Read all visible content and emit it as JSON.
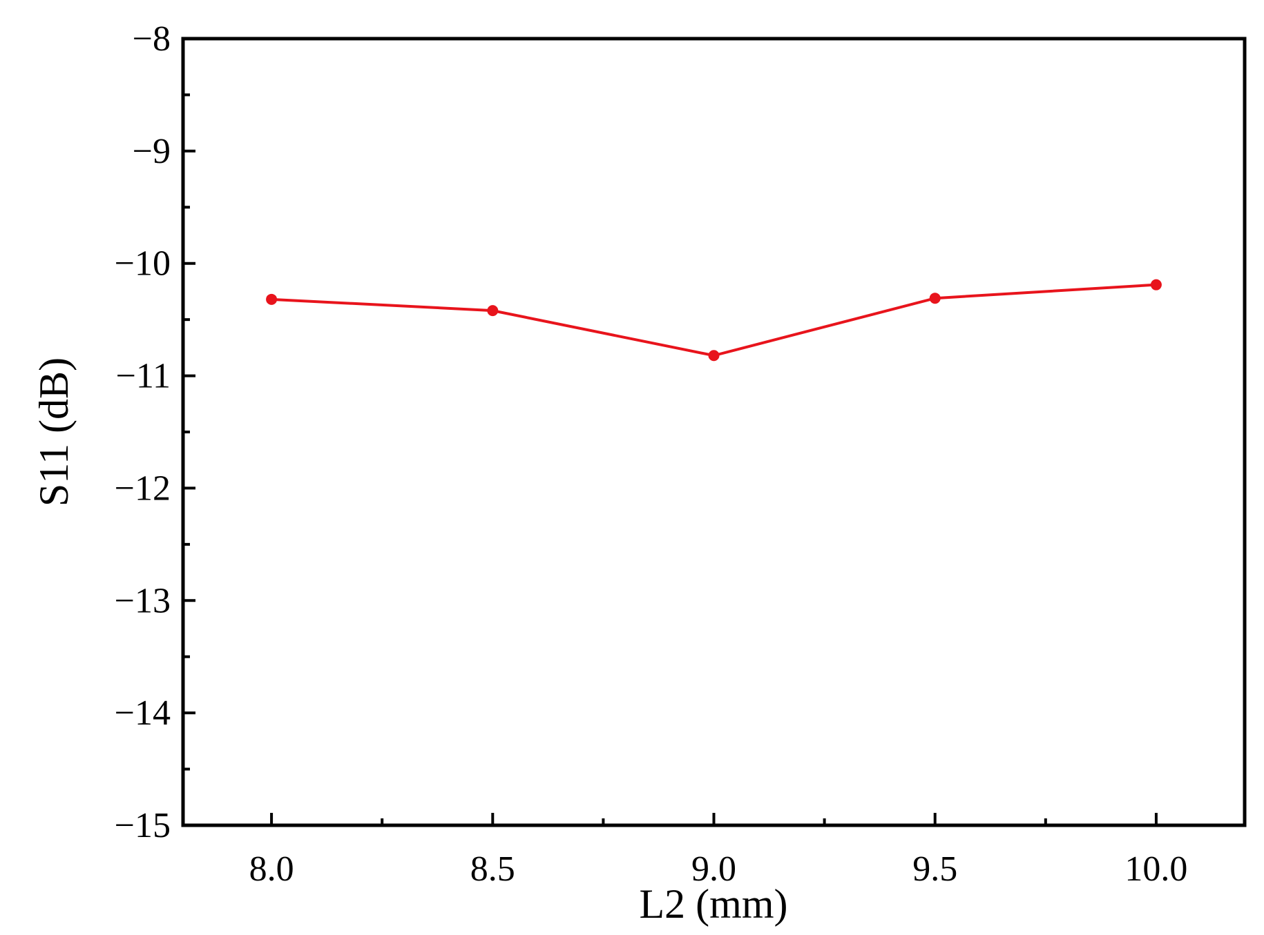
{
  "chart_data": {
    "type": "line",
    "title": "",
    "xlabel": "L2 (mm)",
    "ylabel": "S11 (dB)",
    "xlim": [
      7.8,
      10.2
    ],
    "ylim": [
      -15,
      -8
    ],
    "x_ticks": [
      8.0,
      8.5,
      9.0,
      9.5,
      10.0
    ],
    "x_tick_labels": [
      "8.0",
      "8.5",
      "9.0",
      "9.5",
      "10.0"
    ],
    "y_ticks": [
      -8,
      -9,
      -10,
      -11,
      -12,
      -13,
      -14,
      -15
    ],
    "y_tick_labels": [
      "−8",
      "−9",
      "−10",
      "−11",
      "−12",
      "−13",
      "−14",
      "−15"
    ],
    "grid": false,
    "legend": "none",
    "series": [
      {
        "color": "#e8141c",
        "x": [
          8.0,
          8.5,
          9.0,
          9.5,
          10.0
        ],
        "y": [
          -10.32,
          -10.42,
          -10.82,
          -10.31,
          -10.19
        ]
      }
    ]
  }
}
